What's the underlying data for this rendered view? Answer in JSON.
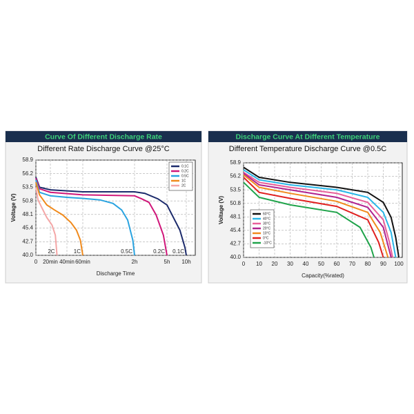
{
  "chart_data": [
    {
      "type": "line",
      "header": "Curve Of Different Discharge Rate",
      "title": "Different Rate Discharge Curve @25°C",
      "xlabel": "Discharge Time",
      "ylabel": "Voltage (V)",
      "xlim": [
        0,
        600
      ],
      "ylim": [
        40,
        58.9
      ],
      "xticks": [
        0,
        {
          "value": 20,
          "label": "20min"
        },
        {
          "value": 40,
          "label": "40min"
        },
        {
          "value": 60,
          "label": "60min"
        },
        {
          "value": 120,
          "label": "2h"
        },
        {
          "value": 300,
          "label": "5h"
        },
        {
          "value": 600,
          "label": "10h"
        }
      ],
      "yticks": [
        {
          "value": 40,
          "label": "40.0"
        },
        42.7,
        45.4,
        48.1,
        50.8,
        53.5,
        56.2,
        58.9
      ],
      "grid": true,
      "legend": "upper right",
      "series": [
        {
          "name": "0.1C",
          "color": "#1b2a6b",
          "x": [
            0,
            5,
            20,
            60,
            120,
            177,
            250,
            300,
            400,
            500,
            580,
            600
          ],
          "values": [
            55.5,
            53.5,
            53.0,
            52.6,
            52.6,
            52.3,
            51.2,
            50.0,
            47.5,
            45.0,
            41.5,
            40.0
          ]
        },
        {
          "name": "0.2C",
          "color": "#d0177a",
          "x": [
            0,
            5,
            20,
            60,
            120,
            160,
            200,
            240,
            280,
            300
          ],
          "values": [
            55.3,
            53.2,
            52.5,
            52.0,
            51.8,
            51.2,
            50.5,
            48.0,
            44.0,
            40.0
          ]
        },
        {
          "name": "0.5C",
          "color": "#29a3e0",
          "x": [
            0,
            5,
            20,
            40,
            60,
            80,
            95,
            105,
            112,
            118,
            120
          ],
          "values": [
            55.0,
            52.5,
            51.8,
            51.5,
            51.3,
            51.0,
            50.3,
            49.0,
            47.0,
            43.0,
            40.0
          ]
        },
        {
          "name": "1C",
          "color": "#f08a1c",
          "x": [
            0,
            5,
            15,
            25,
            35,
            45,
            52,
            57,
            60
          ],
          "values": [
            54.5,
            52.0,
            50.0,
            49.0,
            48.0,
            46.5,
            45.0,
            43.0,
            40.0
          ]
        },
        {
          "name": "2C",
          "color": "#f4a6a6",
          "x": [
            0,
            3,
            8,
            15,
            22,
            26,
            28
          ],
          "values": [
            53.5,
            51.0,
            49.5,
            47.5,
            46.0,
            44.0,
            40.0
          ]
        }
      ]
    },
    {
      "type": "line",
      "header": "Discharge Curve At Different Temperature",
      "title": "Different Temperature Discharge Curve @0.5C",
      "xlabel": "Capacity(%rated)",
      "ylabel": "Voltage (V)",
      "xlim": [
        0,
        100
      ],
      "ylim": [
        40,
        58.9
      ],
      "xticks": [
        0,
        10,
        20,
        30,
        40,
        50,
        60,
        70,
        80,
        90,
        100
      ],
      "yticks": [
        {
          "value": 40,
          "label": "40.0"
        },
        42.7,
        45.4,
        48.1,
        50.8,
        53.5,
        56.2,
        58.9
      ],
      "grid": true,
      "legend": "lower left",
      "series": [
        {
          "name": "60°C",
          "color": "#111111",
          "x": [
            0,
            10,
            30,
            60,
            80,
            90,
            95,
            98,
            100
          ],
          "values": [
            58.0,
            56.0,
            55.0,
            54.0,
            53.0,
            51.0,
            48.0,
            44.0,
            40.0
          ]
        },
        {
          "name": "40°C",
          "color": "#29b6e8",
          "x": [
            0,
            10,
            30,
            60,
            80,
            90,
            95,
            98
          ],
          "values": [
            57.5,
            55.5,
            54.5,
            53.5,
            52.0,
            49.0,
            45.0,
            40.0
          ]
        },
        {
          "name": "30°C",
          "color": "#e8609a",
          "x": [
            0,
            10,
            30,
            60,
            80,
            90,
            94,
            96
          ],
          "values": [
            57.0,
            55.0,
            54.0,
            52.8,
            51.0,
            47.5,
            43.0,
            40.0
          ]
        },
        {
          "name": "20°C",
          "color": "#b0238f",
          "x": [
            0,
            10,
            30,
            60,
            80,
            90,
            95
          ],
          "values": [
            56.8,
            54.5,
            53.5,
            52.0,
            50.0,
            46.0,
            40.0
          ]
        },
        {
          "name": "10°C",
          "color": "#f08a1c",
          "x": [
            0,
            10,
            30,
            60,
            80,
            88,
            93
          ],
          "values": [
            56.5,
            54.0,
            52.8,
            51.2,
            49.0,
            45.0,
            40.0
          ]
        },
        {
          "name": "0°C",
          "color": "#e0201f",
          "x": [
            0,
            10,
            30,
            60,
            80,
            87,
            90
          ],
          "values": [
            56.0,
            53.0,
            51.8,
            50.2,
            47.5,
            43.0,
            40.0
          ]
        },
        {
          "name": "-10°C",
          "color": "#1fa34a",
          "x": [
            0,
            10,
            30,
            60,
            75,
            82,
            84
          ],
          "values": [
            55.0,
            52.0,
            50.5,
            49.0,
            46.0,
            42.0,
            40.0
          ]
        }
      ]
    }
  ]
}
